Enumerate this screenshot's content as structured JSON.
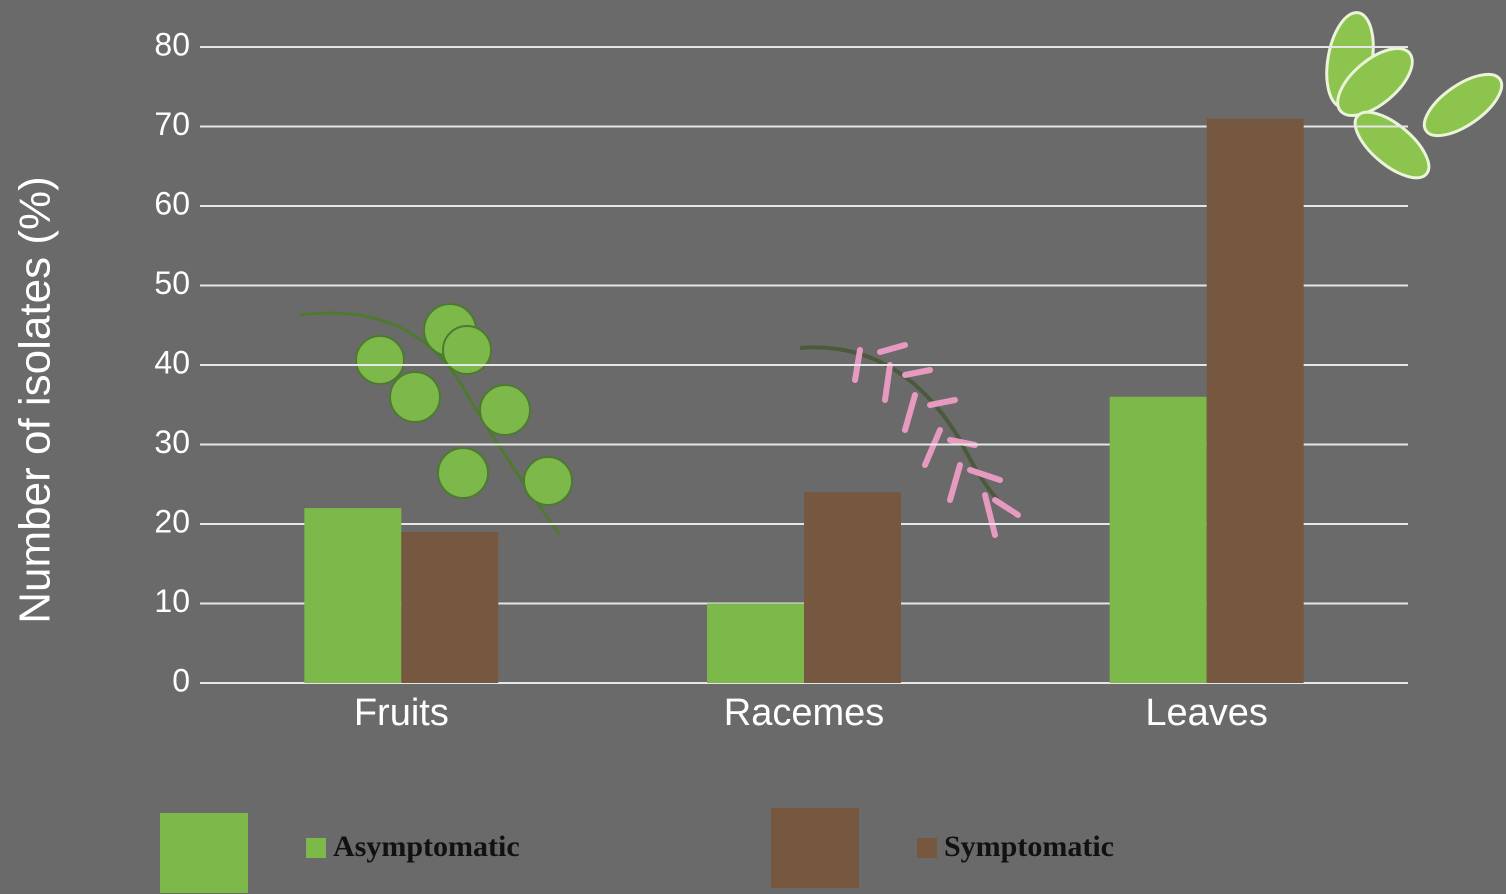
{
  "chart_data": {
    "type": "bar",
    "y_label": "Number of isolates (%)",
    "categories": [
      "Fruits",
      "Racemes",
      "Leaves"
    ],
    "series": [
      {
        "name": "Asymptomatic",
        "color": "#7db84a",
        "values": [
          22,
          10,
          36
        ]
      },
      {
        "name": "Symptomatic",
        "color": "#765840",
        "values": [
          19,
          24,
          71
        ]
      }
    ],
    "ylim": [
      0,
      80
    ],
    "yticks": [
      0,
      10,
      20,
      30,
      40,
      50,
      60,
      70,
      80
    ],
    "grid": true
  }
}
